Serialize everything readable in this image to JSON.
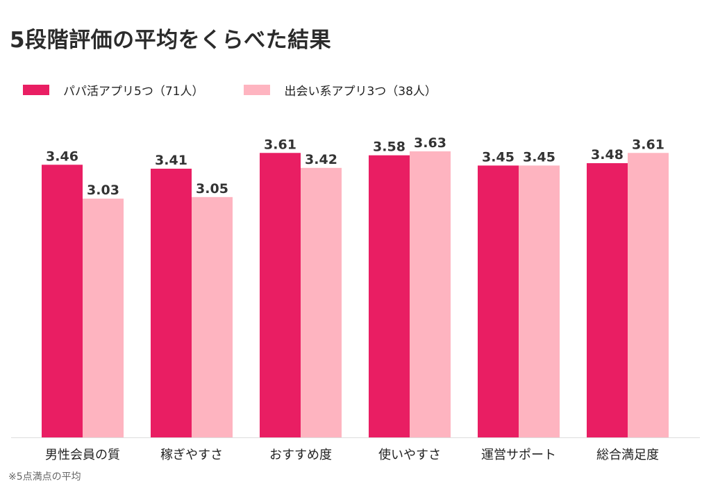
{
  "title": "5段階評価の平均をくらべた結果",
  "footnote": "※5点満点の平均",
  "colors": {
    "series1": "#e91e63",
    "series2": "#feb4c0",
    "axis": "#dddddd",
    "label": "#333333"
  },
  "chart_data": {
    "type": "bar",
    "title": "5段階評価の平均をくらべた結果",
    "categories": [
      "男性会員の質",
      "稼ぎやすさ",
      "おすすめ度",
      "使いやすさ",
      "運営サポート",
      "総合満足度"
    ],
    "series": [
      {
        "name": "パパ活アプリ5つ（71人）",
        "values": [
          3.46,
          3.41,
          3.61,
          3.58,
          3.45,
          3.48
        ]
      },
      {
        "name": "出会い系アプリ3つ（38人）",
        "values": [
          3.03,
          3.05,
          3.42,
          3.63,
          3.45,
          3.61
        ]
      }
    ],
    "ylim": [
      0,
      5
    ],
    "legend": "top-left",
    "grid": false
  }
}
